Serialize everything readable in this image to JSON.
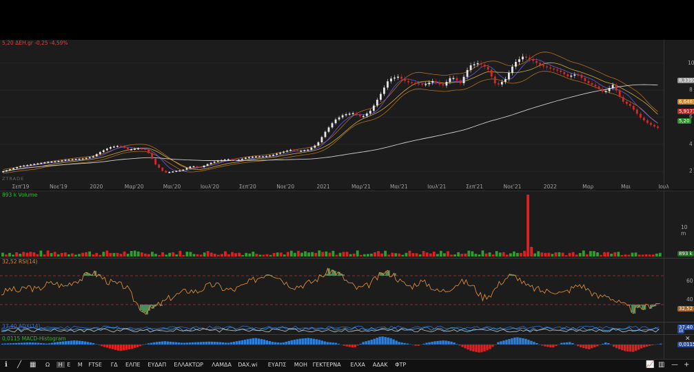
{
  "chart_data": [
    {
      "type": "candlestick",
      "header": "5,20 ΔΕΗ.gr -0,25 -4,59%",
      "x_ticks": [
        "Σεπ'19",
        "Νοε'19",
        "2020",
        "Μαρ'20",
        "Μαι'20",
        "Ιουλ'20",
        "Σεπ'20",
        "Νοε'20",
        "2021",
        "Μαρ'21",
        "Μαι'21",
        "Ιουλ'21",
        "Σεπ'21",
        "Νοε'21",
        "2022",
        "Μαρ",
        "Μαι",
        "Ιουλ"
      ],
      "y_ticks": [
        "10",
        "8",
        "6",
        "4",
        "2"
      ],
      "ylim": [
        1.3,
        11.2
      ],
      "price": [
        2.0,
        2.2,
        2.4,
        2.5,
        2.6,
        2.7,
        2.75,
        2.85,
        2.9,
        2.95,
        3.1,
        3.5,
        3.8,
        3.9,
        3.6,
        3.7,
        3.6,
        2.5,
        1.9,
        2.0,
        2.1,
        2.4,
        2.3,
        2.6,
        2.8,
        2.9,
        2.8,
        3.0,
        3.1,
        3.1,
        3.2,
        3.4,
        3.6,
        3.5,
        3.6,
        4.0,
        5.0,
        5.8,
        6.2,
        6.3,
        6.0,
        6.5,
        7.6,
        8.8,
        9.0,
        8.6,
        8.5,
        8.4,
        8.7,
        8.3,
        9.0,
        8.5,
        9.8,
        10.0,
        9.6,
        8.3,
        8.8,
        10.0,
        10.5,
        10.2,
        9.8,
        9.6,
        9.4,
        9.0,
        9.2,
        8.6,
        8.3,
        7.8,
        8.4,
        7.2,
        6.8,
        6.0,
        5.5,
        5.2
      ],
      "overlay_values": [
        "8,3393",
        "6,6467",
        "5,9177",
        "5,20"
      ],
      "overlay_colors": [
        "#9a9a9a",
        "#c8832b",
        "#c22a2a",
        "#2e8b2e"
      ]
    },
    {
      "type": "bar",
      "header": "893 k Volume",
      "y_ticks": [
        "10 m"
      ],
      "last_value": "893 k",
      "spike_index": 151,
      "bars": 190
    },
    {
      "type": "line",
      "header": "32,52 RSI(14)",
      "y_ticks": [
        "60",
        "40"
      ],
      "ylim": [
        10,
        90
      ],
      "levels": [
        70,
        30
      ],
      "rsi": [
        45,
        52,
        48,
        55,
        50,
        58,
        60,
        55,
        62,
        66,
        75,
        70,
        62,
        58,
        55,
        35,
        20,
        25,
        32,
        40,
        45,
        50,
        48,
        55,
        58,
        52,
        50,
        55,
        62,
        68,
        75,
        70,
        60,
        55,
        58,
        62,
        70,
        78,
        72,
        60,
        52,
        55,
        65,
        75,
        72,
        60,
        55,
        62,
        58,
        48,
        50,
        58,
        62,
        55,
        40,
        45,
        60,
        70,
        68,
        55,
        52,
        48,
        50,
        45,
        52,
        58,
        50,
        40,
        44,
        35,
        28,
        22,
        25,
        30,
        32
      ],
      "last_value": "32,52"
    },
    {
      "type": "line",
      "header": "37,40 ADX(14)",
      "last_value": "37,40",
      "second_value": "10"
    },
    {
      "type": "bar",
      "header": "0,0115 MACD-Histogram",
      "last_value": "0,0115",
      "hist": [
        0.1,
        0.15,
        0.2,
        0.25,
        0.2,
        0.1,
        0.3,
        0.4,
        0.5,
        0.4,
        0.2,
        -0.2,
        -0.5,
        -0.8,
        -0.6,
        -0.3,
        0.1,
        0.3,
        0.4,
        0.3,
        0.2,
        0.25,
        0.3,
        0.35,
        0.3,
        0.2,
        0.4,
        0.6,
        0.8,
        0.6,
        0.3,
        0.2,
        0.5,
        0.7,
        0.8,
        0.6,
        0.3,
        0.2,
        -0.2,
        -0.4,
        0.3,
        0.6,
        1.0,
        0.8,
        0.3,
        0.1,
        -0.2,
        0.2,
        0.4,
        0.5,
        0.3,
        -0.3,
        -0.8,
        -1.0,
        -0.6,
        0.3,
        0.6,
        0.9,
        0.7,
        0.3,
        -0.2,
        -0.4,
        0.2,
        0.3,
        -0.3,
        -0.6,
        -0.2,
        0.3,
        -0.4,
        -0.8,
        -0.9,
        -0.4,
        -0.1,
        0.1
      ]
    }
  ],
  "toolbar": {
    "items": [
      "Ω",
      "Η",
      "Ε",
      "Μ",
      "FTSE",
      "ΓΔ",
      "ΕΛΠΕ",
      "ΕΥΔΑΠ",
      "ΕΛΛΑΚΤΩΡ",
      "ΛΑΜΔΑ",
      "DAX.wi",
      "ΕΥΑΠΣ",
      "ΜΟΗ",
      "ΓΕΚΤΕΡΝΑ",
      "ΕΛΧΑ",
      "ΑΔΑΚ",
      "ΦΤΡ"
    ],
    "active_index": 1
  },
  "watermark": "ZTRADE",
  "colors": {
    "up": "#2ca02c",
    "down": "#e02020",
    "rsi": "#d98a3a",
    "macd_pos": "#2f7fd6",
    "macd_neg": "#e02020",
    "ma": "#d0d0d0"
  }
}
